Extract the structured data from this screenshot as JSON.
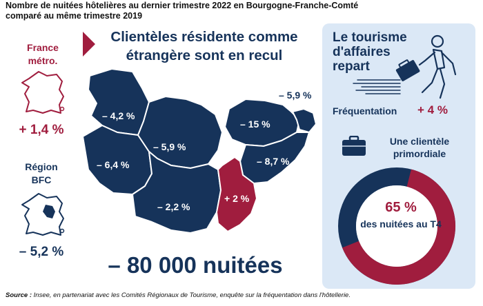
{
  "header": {
    "title": "Nombre de nuitées hôtelières au dernier trimestre 2022 en Bourgogne-Franche-Comté",
    "subtitle": "comparé au même trimestre 2019"
  },
  "headline": "Clientèles résidente comme étrangère sont en recul",
  "france": {
    "label": "France métro.",
    "value": "+ 1,4 %"
  },
  "region": {
    "label": "Région BFC",
    "value": "– 5,2 %"
  },
  "map": {
    "departments": [
      {
        "value": "– 4,2 %",
        "trend": "down"
      },
      {
        "value": "– 6,4 %",
        "trend": "down"
      },
      {
        "value": "– 5,9 %",
        "trend": "down"
      },
      {
        "value": "– 2,2 %",
        "trend": "down"
      },
      {
        "value": "– 15 %",
        "trend": "down"
      },
      {
        "value": "– 8,7 %",
        "trend": "down"
      },
      {
        "value": "+ 2 %",
        "trend": "up"
      },
      {
        "value": "– 5,9 %",
        "trend": "down"
      }
    ],
    "colors": {
      "down": "#16335a",
      "up": "#a01d3e"
    }
  },
  "total": "– 80 000 nuitées",
  "panel": {
    "title": "Le tourisme d'affaires repart",
    "frequentation_label": "Fréquentation",
    "frequentation_value": "+ 4 %",
    "client_title": "Une clientèle primordiale",
    "donut_percent": "65 %",
    "donut_label": "des nuitées au T4",
    "donut_share": 0.65
  },
  "source": {
    "prefix": "Source :",
    "text": "Insee, en partenariat avec les Comités Régionaux de Tourisme, enquête sur la fréquentation dans l'hôtellerie."
  },
  "colors": {
    "navy": "#16335a",
    "crimson": "#a01d3e",
    "panel_bg": "#dbe8f6",
    "donut_track": "#16335a"
  }
}
